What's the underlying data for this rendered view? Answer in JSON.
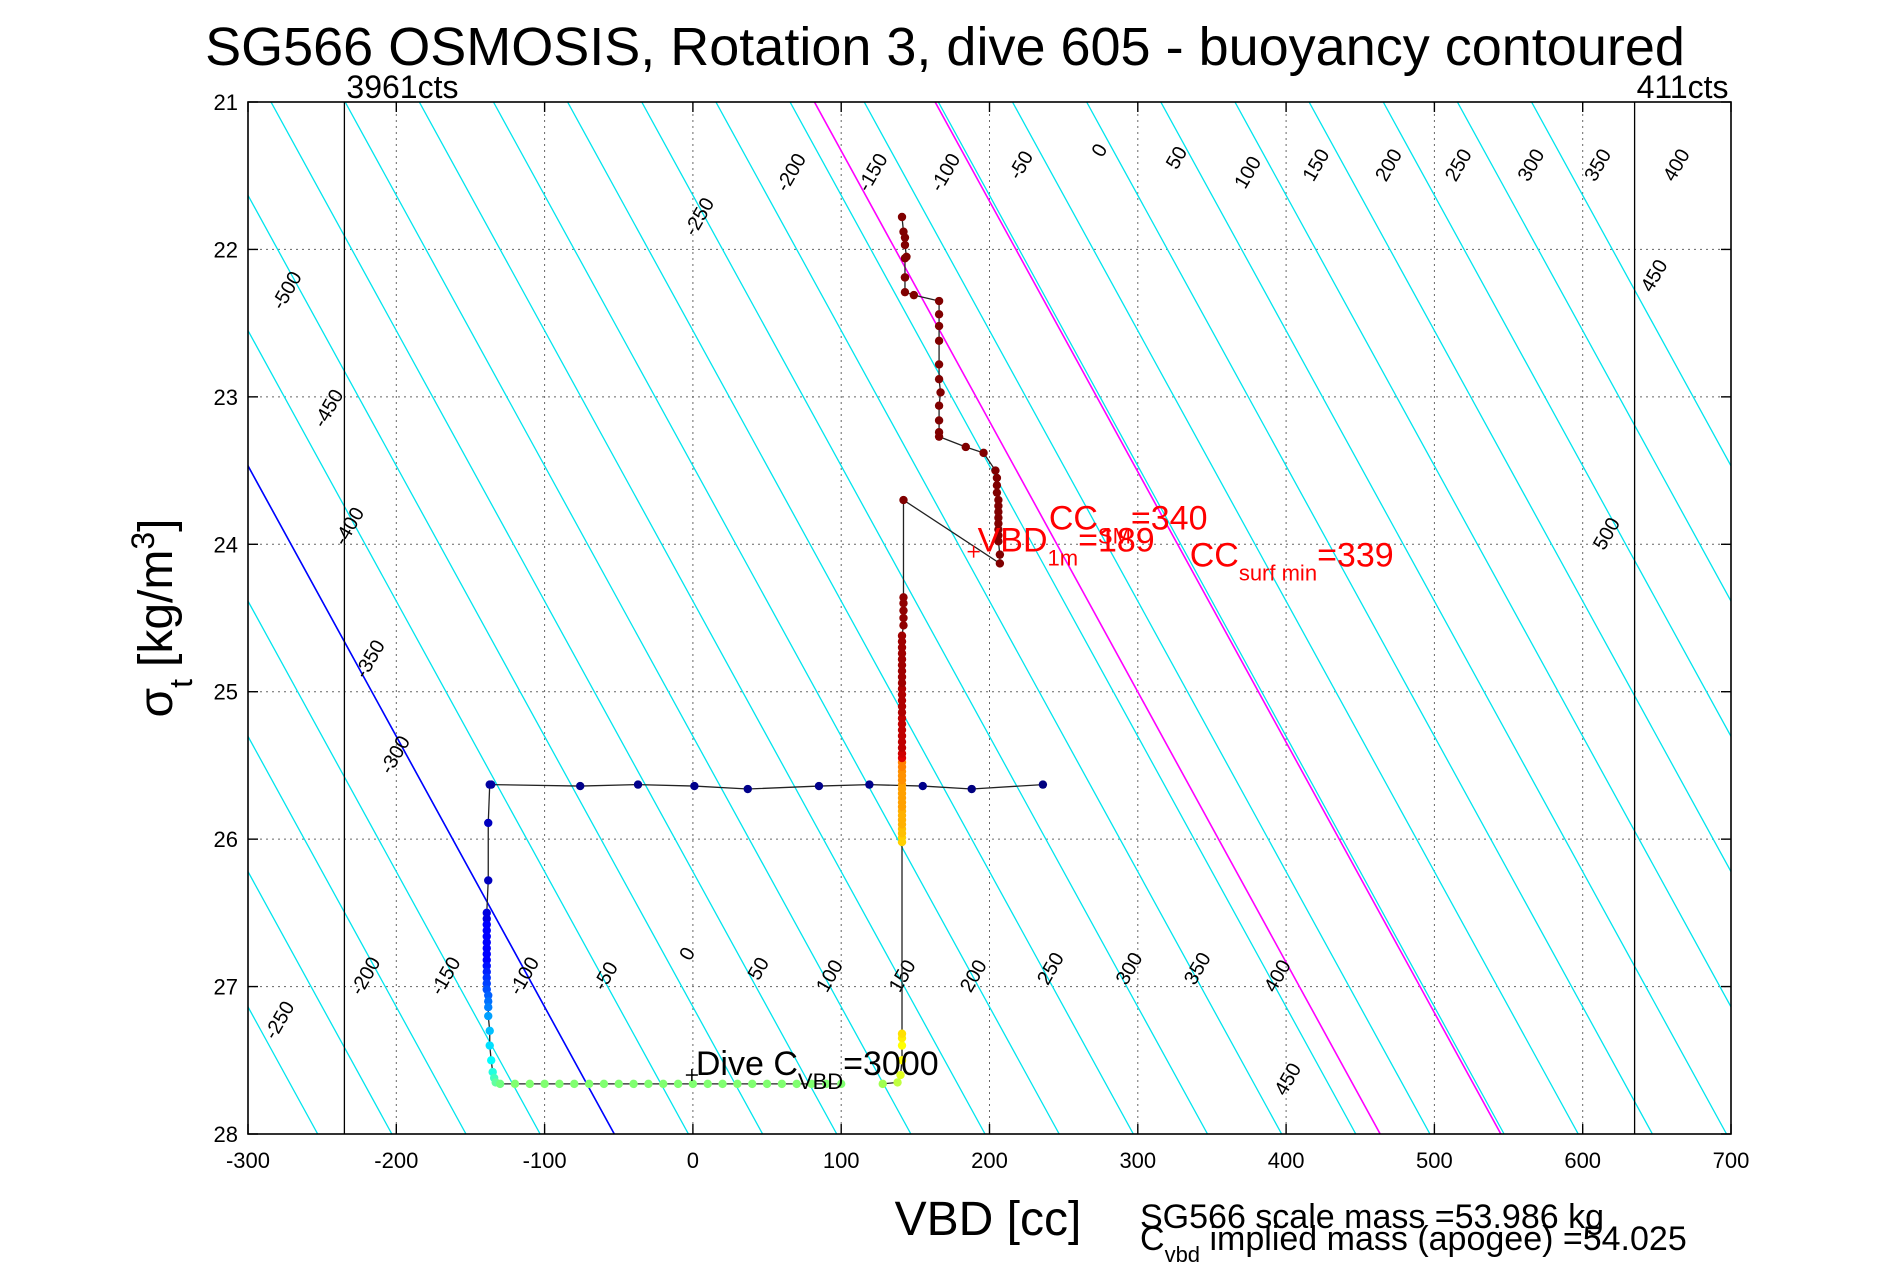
{
  "chart_data": {
    "type": "scatter",
    "title": "SG566 OSMOSIS, Rotation 3, dive 605 - buoyancy contoured",
    "xlabel": "VBD [cc]",
    "ylabel": {
      "main": "σ",
      "sub": "t",
      "unit": "[kg/m",
      "unit_sup": "3",
      "unit_close": "]"
    },
    "xlim": [
      -300,
      700
    ],
    "ylim": [
      21,
      28
    ],
    "y_reversed": true,
    "grid": true,
    "x_ticks": [
      -300,
      -200,
      -100,
      0,
      100,
      200,
      300,
      400,
      500,
      600,
      700
    ],
    "y_ticks": [
      21,
      22,
      23,
      24,
      25,
      26,
      27,
      28
    ],
    "colors": {
      "contour": "#00e5ee",
      "zero_contour": "#0000ff",
      "cc_contour": "#ff00ff",
      "annotation": "#ff0000",
      "descent": "#000080",
      "ascent": "#800000"
    },
    "pump_limits": [
      {
        "x": -235,
        "label": "3961cts"
      },
      {
        "x": 635,
        "label": "411cts"
      }
    ],
    "contours": {
      "x_per_sigma": 54.5,
      "c0": 112,
      "b0": 165,
      "step": 50,
      "min": -500,
      "max": 500
    },
    "contour_labels_top": [
      {
        "value": "-500",
        "x": -270,
        "y": 22.3
      },
      {
        "value": "-450",
        "x": -242,
        "y": 23.1
      },
      {
        "value": "-400",
        "x": -228,
        "y": 23.9
      },
      {
        "value": "-350",
        "x": -214,
        "y": 24.8
      },
      {
        "value": "-300",
        "x": -197,
        "y": 25.45
      },
      {
        "value": "-250",
        "x": 8,
        "y": 21.8
      },
      {
        "value": "-200",
        "x": 70,
        "y": 21.5
      },
      {
        "value": "-150",
        "x": 125,
        "y": 21.5
      },
      {
        "value": "-100",
        "x": 174,
        "y": 21.5
      },
      {
        "value": "-50",
        "x": 225,
        "y": 21.45
      },
      {
        "value": "0",
        "x": 278,
        "y": 21.35
      },
      {
        "value": "50",
        "x": 330,
        "y": 21.4
      },
      {
        "value": "100",
        "x": 378,
        "y": 21.5
      },
      {
        "value": "150",
        "x": 424,
        "y": 21.45
      },
      {
        "value": "200",
        "x": 473,
        "y": 21.45
      },
      {
        "value": "250",
        "x": 520,
        "y": 21.45
      },
      {
        "value": "300",
        "x": 569,
        "y": 21.45
      },
      {
        "value": "350",
        "x": 614,
        "y": 21.45
      },
      {
        "value": "400",
        "x": 667,
        "y": 21.45
      },
      {
        "value": "450",
        "x": 652,
        "y": 22.2
      },
      {
        "value": "500",
        "x": 620,
        "y": 23.95
      }
    ],
    "contour_labels_bottom": [
      {
        "value": "-250",
        "x": -275,
        "y": 27.25
      },
      {
        "value": "-200",
        "x": -217,
        "y": 26.95
      },
      {
        "value": "-150",
        "x": -163,
        "y": 26.95
      },
      {
        "value": "-100",
        "x": -110,
        "y": 26.95
      },
      {
        "value": "-50",
        "x": -55,
        "y": 26.95
      },
      {
        "value": "0",
        "x": 0,
        "y": 26.8
      },
      {
        "value": "50",
        "x": 48,
        "y": 26.9
      },
      {
        "value": "100",
        "x": 96,
        "y": 26.95
      },
      {
        "value": "150",
        "x": 145,
        "y": 26.95
      },
      {
        "value": "200",
        "x": 193,
        "y": 26.95
      },
      {
        "value": "250",
        "x": 245,
        "y": 26.9
      },
      {
        "value": "300",
        "x": 298,
        "y": 26.9
      },
      {
        "value": "350",
        "x": 344,
        "y": 26.9
      },
      {
        "value": "400",
        "x": 398,
        "y": 26.95
      },
      {
        "value": "450",
        "x": 405,
        "y": 27.65
      }
    ],
    "series": [
      {
        "colors": [
          "#000080",
          "#000080",
          "#00008b",
          "#00008b",
          "#00008b",
          "#00008b",
          "#00008b",
          "#00008b",
          "#00008b",
          "#0000a0",
          "#0000a0",
          "#0000c0",
          "#0000c0",
          "#0000e0",
          "#0000e0",
          "#0000ff",
          "#0000ff",
          "#0000ff",
          "#0000ff",
          "#0000ff",
          "#0000ff",
          "#0000ff",
          "#0010ff",
          "#0020ff",
          "#0030ff",
          "#0040ff",
          "#0050ff",
          "#0060ff",
          "#0070ff",
          "#0080ff",
          "#00a0ff",
          "#00c0ff",
          "#00e0ff",
          "#00ffff",
          "#20ffe0",
          "#40ffc0",
          "#60ffa0",
          "#70ff80",
          "#80ff70",
          "#80ff70",
          "#80ff70",
          "#80ff70",
          "#80ff70",
          "#80ff70",
          "#80ff70",
          "#80ff70",
          "#80ff70",
          "#80ff70",
          "#80ff70",
          "#80ff70",
          "#80ff70",
          "#80ff70",
          "#80ff70",
          "#80ff70",
          "#80ff70",
          "#80ff70",
          "#80ff70",
          "#80ff70",
          "#80ff70",
          "#80ff70",
          "#80ff70"
        ],
        "points": [
          [
            236,
            25.63
          ],
          [
            188,
            25.66
          ],
          [
            155,
            25.64
          ],
          [
            119,
            25.63
          ],
          [
            85,
            25.64
          ],
          [
            37,
            25.66
          ],
          [
            1,
            25.64
          ],
          [
            -37,
            25.63
          ],
          [
            -76,
            25.64
          ],
          [
            -136,
            25.63
          ],
          [
            -137,
            25.63
          ],
          [
            -138,
            25.89
          ],
          [
            -138,
            26.28
          ],
          [
            -139,
            26.5
          ],
          [
            -139,
            26.54
          ],
          [
            -139,
            26.58
          ],
          [
            -139,
            26.62
          ],
          [
            -139,
            26.66
          ],
          [
            -139,
            26.7
          ],
          [
            -139,
            26.74
          ],
          [
            -139,
            26.78
          ],
          [
            -139,
            26.82
          ],
          [
            -139,
            26.86
          ],
          [
            -139,
            26.9
          ],
          [
            -139,
            26.94
          ],
          [
            -139,
            26.98
          ],
          [
            -139,
            27.02
          ],
          [
            -138,
            27.06
          ],
          [
            -138,
            27.1
          ],
          [
            -138,
            27.14
          ],
          [
            -138,
            27.2
          ],
          [
            -137,
            27.3
          ],
          [
            -137,
            27.4
          ],
          [
            -136,
            27.5
          ],
          [
            -135,
            27.58
          ],
          [
            -134,
            27.62
          ],
          [
            -133,
            27.65
          ],
          [
            -130,
            27.66
          ],
          [
            -120,
            27.66
          ],
          [
            -110,
            27.66
          ],
          [
            -100,
            27.66
          ],
          [
            -90,
            27.66
          ],
          [
            -80,
            27.66
          ],
          [
            -70,
            27.66
          ],
          [
            -60,
            27.66
          ],
          [
            -50,
            27.66
          ],
          [
            -40,
            27.66
          ],
          [
            -30,
            27.66
          ],
          [
            -20,
            27.66
          ],
          [
            -10,
            27.66
          ],
          [
            0,
            27.66
          ],
          [
            10,
            27.66
          ],
          [
            20,
            27.66
          ],
          [
            30,
            27.66
          ],
          [
            40,
            27.66
          ],
          [
            50,
            27.66
          ],
          [
            60,
            27.66
          ],
          [
            70,
            27.66
          ],
          [
            80,
            27.66
          ],
          [
            90,
            27.66
          ],
          [
            100,
            27.66
          ]
        ]
      },
      {
        "colors": [
          "#a0ff50",
          "#c0ff40",
          "#e0ff20",
          "#ffff00",
          "#ffff00",
          "#ffee00",
          "#ffe000",
          "#ffd000",
          "#ffd000",
          "#ffc000",
          "#ffc000",
          "#ffb000",
          "#ffb000",
          "#ffb000",
          "#ffb000",
          "#ffa000",
          "#ffa000",
          "#ffa000",
          "#ffa000",
          "#ffa000",
          "#ffa000",
          "#ff9000",
          "#ff9000",
          "#ff9000",
          "#ff8000",
          "#ff8000",
          "#e00000",
          "#d00000",
          "#c00000",
          "#c00000",
          "#c00000",
          "#c00000",
          "#c00000",
          "#c00000",
          "#b00000",
          "#b00000",
          "#b00000",
          "#b00000",
          "#b00000",
          "#a00000",
          "#a00000",
          "#a00000",
          "#a00000",
          "#a00000",
          "#a00000",
          "#a00000",
          "#a00000",
          "#a00000",
          "#900000",
          "#900000",
          "#900000",
          "#900000",
          "#900000",
          "#800000",
          "#800000",
          "#800000",
          "#800000",
          "#800000",
          "#800000",
          "#800000",
          "#800000",
          "#800000",
          "#800000",
          "#800000",
          "#800000",
          "#800000",
          "#800000",
          "#800000",
          "#800000",
          "#800000",
          "#800000",
          "#800000",
          "#800000",
          "#800000",
          "#800000",
          "#800000",
          "#800000",
          "#800000",
          "#800000",
          "#800000",
          "#800000",
          "#800000",
          "#800000",
          "#800000"
        ],
        "points": [
          [
            128,
            27.66
          ],
          [
            138,
            27.65
          ],
          [
            140,
            27.6
          ],
          [
            141,
            27.5
          ],
          [
            141,
            27.4
          ],
          [
            141,
            27.35
          ],
          [
            141,
            27.32
          ],
          [
            141,
            26.02
          ],
          [
            141,
            25.99
          ],
          [
            141,
            25.96
          ],
          [
            141,
            25.93
          ],
          [
            141,
            25.9
          ],
          [
            141,
            25.87
          ],
          [
            141,
            25.84
          ],
          [
            141,
            25.81
          ],
          [
            141,
            25.78
          ],
          [
            141,
            25.75
          ],
          [
            141,
            25.72
          ],
          [
            141,
            25.69
          ],
          [
            141,
            25.66
          ],
          [
            141,
            25.63
          ],
          [
            141,
            25.6
          ],
          [
            141,
            25.57
          ],
          [
            141,
            25.54
          ],
          [
            141,
            25.51
          ],
          [
            141,
            25.48
          ],
          [
            141,
            25.45
          ],
          [
            141,
            25.42
          ],
          [
            141,
            25.38
          ],
          [
            141,
            25.34
          ],
          [
            141,
            25.3
          ],
          [
            141,
            25.26
          ],
          [
            141,
            25.22
          ],
          [
            141,
            25.18
          ],
          [
            141,
            25.14
          ],
          [
            141,
            25.1
          ],
          [
            141,
            25.06
          ],
          [
            141,
            25.02
          ],
          [
            141,
            24.98
          ],
          [
            141,
            24.94
          ],
          [
            141,
            24.9
          ],
          [
            141,
            24.86
          ],
          [
            141,
            24.82
          ],
          [
            141,
            24.78
          ],
          [
            141,
            24.74
          ],
          [
            141,
            24.7
          ],
          [
            141,
            24.66
          ],
          [
            141,
            24.62
          ],
          [
            142,
            24.55
          ],
          [
            142,
            24.5
          ],
          [
            142,
            24.45
          ],
          [
            142,
            24.4
          ],
          [
            142,
            24.36
          ],
          [
            142,
            23.7
          ],
          [
            207,
            24.13
          ],
          [
            207,
            24.07
          ],
          [
            206,
            23.98
          ],
          [
            206,
            23.94
          ],
          [
            206,
            23.9
          ],
          [
            206,
            23.86
          ],
          [
            206,
            23.82
          ],
          [
            206,
            23.78
          ],
          [
            206,
            23.74
          ],
          [
            206,
            23.7
          ],
          [
            205,
            23.65
          ],
          [
            205,
            23.6
          ],
          [
            205,
            23.55
          ],
          [
            204,
            23.5
          ],
          [
            196,
            23.38
          ],
          [
            184,
            23.34
          ],
          [
            166,
            23.27
          ],
          [
            166,
            23.24
          ],
          [
            166,
            23.16
          ],
          [
            166,
            23.06
          ],
          [
            167,
            22.97
          ],
          [
            166,
            22.88
          ],
          [
            166,
            22.78
          ],
          [
            166,
            22.62
          ],
          [
            166,
            22.52
          ],
          [
            166,
            22.44
          ],
          [
            166,
            22.35
          ],
          [
            149,
            22.31
          ],
          [
            143,
            22.29
          ],
          [
            143,
            22.19
          ]
        ]
      },
      {
        "colors": [
          "#800000",
          "#800000",
          "#800000",
          "#800000",
          "#800000",
          "#800000",
          "#800000"
        ],
        "points": [
          [
            143,
            22.19
          ],
          [
            143,
            22.06
          ],
          [
            144,
            22.05
          ],
          [
            143,
            21.97
          ],
          [
            143,
            21.92
          ],
          [
            142,
            21.88
          ],
          [
            141,
            21.78
          ]
        ]
      }
    ],
    "annotations": [
      {
        "text": "VBD",
        "sub": "1m",
        "suffix": "=189",
        "x": 192,
        "y": 24.05,
        "color": "#ff0000",
        "size": 34,
        "marker": true
      },
      {
        "text": "CC",
        "sub": "SM",
        "suffix": "=340",
        "x": 240,
        "y": 23.9,
        "color": "#ff0000",
        "size": 34
      },
      {
        "text": "CC",
        "sub": "surf min",
        "suffix": "=339",
        "x": 335,
        "y": 24.15,
        "color": "#ff0000",
        "size": 34
      },
      {
        "text": "Dive C",
        "sub": "VBD",
        "suffix": "=3000",
        "x": 2,
        "y": 27.6,
        "color": "#000000",
        "size": 34,
        "marker": true
      }
    ],
    "footer": {
      "line1": "SG566 scale mass =53.986 kg",
      "line2_pre": "C",
      "line2_sub": "vbd",
      "line2_post": " implied mass (apogee) =54.025"
    }
  }
}
